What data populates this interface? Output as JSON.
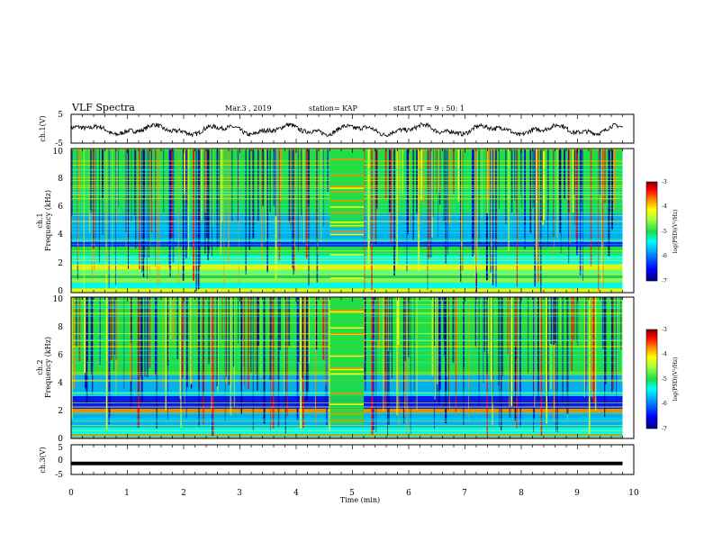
{
  "header": {
    "title": "VLF Spectra",
    "date": "Mar.3 , 2019",
    "station": "station= KAP",
    "start": "start UT = 9 : 50: 1"
  },
  "colors": {
    "colormap": [
      "#000080",
      "#0000ff",
      "#00aaff",
      "#00ffff",
      "#22dd44",
      "#a0ff40",
      "#ffff00",
      "#ff8800",
      "#ff0000",
      "#800000"
    ],
    "trace": "#000000",
    "axes": "#000000"
  },
  "chart_data": [
    {
      "name": "ch1-waveform",
      "type": "line",
      "ylabel": "ch.1(V)",
      "ylim": [
        -5,
        5
      ],
      "yticks": [
        "5",
        "-5"
      ],
      "xlim": [
        0,
        10
      ],
      "note_values": "noisy oscillating waveform between about -2 and 1.5 V"
    },
    {
      "name": "ch1-spectrogram",
      "type": "heatmap",
      "ylabel": [
        "ch.1",
        "Frequency (kHz)"
      ],
      "yticks": [
        "0",
        "2",
        "4",
        "6",
        "8",
        "10"
      ],
      "ylim": [
        0,
        10
      ],
      "xlim": [
        0,
        9.8
      ],
      "colorbar": {
        "label": "log(PSD)(V²/Hz)",
        "ticks": [
          "-3",
          "-4",
          "-5",
          "-6",
          "-7"
        ],
        "range": [
          -7,
          -3
        ]
      }
    },
    {
      "name": "ch2-spectrogram",
      "type": "heatmap",
      "ylabel": [
        "ch.2",
        "Frequency (kHz)"
      ],
      "yticks": [
        "0",
        "2",
        "4",
        "6",
        "8",
        "10"
      ],
      "ylim": [
        0,
        10
      ],
      "xlim": [
        0,
        9.8
      ],
      "colorbar": {
        "label": "log(PSD)(V²/Hz)",
        "ticks": [
          "-3",
          "-4",
          "-5",
          "-6",
          "-7"
        ],
        "range": [
          -7,
          -3
        ]
      }
    },
    {
      "name": "ch3-waveform",
      "type": "line",
      "ylabel": "ch.3(V)",
      "ylim": [
        -5,
        5
      ],
      "yticks": [
        "5",
        "0",
        "-5"
      ],
      "x": [
        0,
        9.8
      ],
      "y": [
        -1.3,
        -1.3
      ]
    }
  ],
  "xaxis": {
    "label": "Time (min)",
    "ticks": [
      "0",
      "1",
      "2",
      "3",
      "4",
      "5",
      "6",
      "7",
      "8",
      "9",
      "10"
    ],
    "range": [
      0,
      10
    ]
  }
}
